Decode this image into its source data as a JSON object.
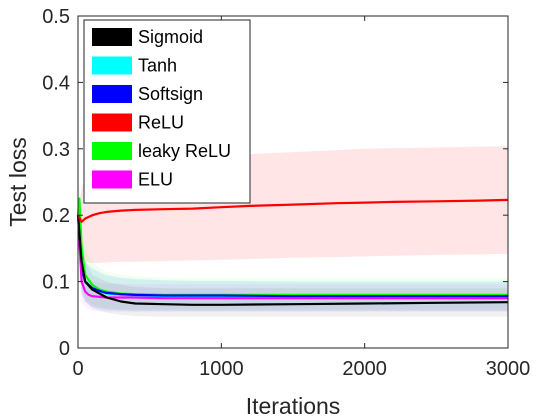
{
  "chart_data": {
    "type": "line",
    "title": "",
    "xlabel": "Iterations",
    "ylabel": "Test loss",
    "xlim": [
      0,
      3000
    ],
    "ylim": [
      0,
      0.5
    ],
    "xticks": [
      0,
      1000,
      2000,
      3000
    ],
    "yticks": [
      0,
      0.1,
      0.2,
      0.3,
      0.4,
      0.5
    ],
    "grid": false,
    "legend_position": "top-left",
    "series": [
      {
        "name": "Sigmoid",
        "color": "#000000",
        "x": [
          0,
          25,
          50,
          100,
          150,
          200,
          300,
          400,
          600,
          800,
          1000,
          1500,
          2000,
          2500,
          3000
        ],
        "y": [
          0.2,
          0.13,
          0.1,
          0.088,
          0.082,
          0.076,
          0.07,
          0.067,
          0.066,
          0.065,
          0.065,
          0.066,
          0.067,
          0.068,
          0.069
        ],
        "band_lower": [
          0.17,
          0.09,
          0.07,
          0.06,
          0.056,
          0.053,
          0.05,
          0.048,
          0.047,
          0.047,
          0.047,
          0.047,
          0.047,
          0.047,
          0.047
        ],
        "band_upper": [
          0.22,
          0.17,
          0.13,
          0.11,
          0.105,
          0.1,
          0.095,
          0.092,
          0.09,
          0.09,
          0.09,
          0.09,
          0.09,
          0.09,
          0.09
        ]
      },
      {
        "name": "Tanh",
        "color": "#00ffff",
        "x": [
          0,
          25,
          50,
          100,
          150,
          200,
          300,
          400,
          600,
          800,
          1000,
          1500,
          2000,
          2500,
          3000
        ],
        "y": [
          0.2,
          0.12,
          0.1,
          0.09,
          0.085,
          0.082,
          0.08,
          0.079,
          0.078,
          0.078,
          0.078,
          0.078,
          0.078,
          0.078,
          0.078
        ],
        "band_lower": [
          0.17,
          0.08,
          0.07,
          0.06,
          0.058,
          0.056,
          0.055,
          0.055,
          0.055,
          0.055,
          0.055,
          0.055,
          0.055,
          0.055,
          0.055
        ],
        "band_upper": [
          0.23,
          0.16,
          0.13,
          0.12,
          0.112,
          0.108,
          0.105,
          0.103,
          0.102,
          0.101,
          0.101,
          0.101,
          0.101,
          0.101,
          0.101
        ]
      },
      {
        "name": "Softsign",
        "color": "#0000ff",
        "x": [
          0,
          25,
          50,
          100,
          150,
          200,
          300,
          400,
          600,
          800,
          1000,
          1500,
          2000,
          2500,
          3000
        ],
        "y": [
          0.2,
          0.12,
          0.1,
          0.09,
          0.086,
          0.083,
          0.081,
          0.08,
          0.079,
          0.079,
          0.079,
          0.078,
          0.078,
          0.078,
          0.078
        ],
        "band_lower": [
          0.17,
          0.08,
          0.07,
          0.062,
          0.06,
          0.058,
          0.057,
          0.056,
          0.056,
          0.056,
          0.056,
          0.056,
          0.056,
          0.056,
          0.056
        ],
        "band_upper": [
          0.23,
          0.16,
          0.13,
          0.12,
          0.114,
          0.11,
          0.106,
          0.104,
          0.102,
          0.101,
          0.101,
          0.1,
          0.1,
          0.1,
          0.1
        ]
      },
      {
        "name": "ReLU",
        "color": "#ff0000",
        "x": [
          0,
          25,
          50,
          100,
          150,
          200,
          300,
          400,
          600,
          800,
          1000,
          1200,
          1500,
          1800,
          2000,
          2200,
          2500,
          2800,
          3000
        ],
        "y": [
          0.2,
          0.19,
          0.195,
          0.2,
          0.203,
          0.205,
          0.207,
          0.208,
          0.209,
          0.21,
          0.212,
          0.214,
          0.216,
          0.218,
          0.219,
          0.22,
          0.221,
          0.222,
          0.223
        ],
        "band_lower": [
          0.19,
          0.14,
          0.13,
          0.128,
          0.128,
          0.129,
          0.13,
          0.13,
          0.131,
          0.132,
          0.133,
          0.134,
          0.136,
          0.137,
          0.138,
          0.139,
          0.14,
          0.141,
          0.142
        ],
        "band_upper": [
          0.21,
          0.24,
          0.26,
          0.27,
          0.275,
          0.278,
          0.282,
          0.284,
          0.286,
          0.288,
          0.29,
          0.292,
          0.295,
          0.298,
          0.3,
          0.301,
          0.302,
          0.303,
          0.304
        ]
      },
      {
        "name": "leaky ReLU",
        "color": "#00ff00",
        "x": [
          0,
          10,
          25,
          50,
          100,
          150,
          200,
          300,
          400,
          600,
          800,
          1000,
          1500,
          2000,
          2500,
          3000
        ],
        "y": [
          0.2,
          0.225,
          0.15,
          0.11,
          0.095,
          0.088,
          0.085,
          0.082,
          0.081,
          0.08,
          0.08,
          0.08,
          0.08,
          0.08,
          0.08,
          0.08
        ],
        "band_lower": [
          0.17,
          0.19,
          0.1,
          0.075,
          0.065,
          0.062,
          0.06,
          0.058,
          0.058,
          0.058,
          0.058,
          0.058,
          0.058,
          0.058,
          0.058,
          0.058
        ],
        "band_upper": [
          0.23,
          0.25,
          0.2,
          0.15,
          0.13,
          0.12,
          0.115,
          0.11,
          0.108,
          0.106,
          0.105,
          0.105,
          0.105,
          0.105,
          0.105,
          0.105
        ]
      },
      {
        "name": "ELU",
        "color": "#ff00ff",
        "x": [
          0,
          25,
          50,
          75,
          100,
          150,
          200,
          300,
          400,
          600,
          800,
          1000,
          1500,
          2000,
          2500,
          3000
        ],
        "y": [
          0.2,
          0.1,
          0.085,
          0.08,
          0.078,
          0.077,
          0.076,
          0.076,
          0.076,
          0.075,
          0.075,
          0.075,
          0.075,
          0.075,
          0.075,
          0.075
        ],
        "band_lower": [
          0.17,
          0.07,
          0.062,
          0.058,
          0.056,
          0.055,
          0.055,
          0.055,
          0.055,
          0.055,
          0.055,
          0.055,
          0.055,
          0.055,
          0.055,
          0.055
        ],
        "band_upper": [
          0.23,
          0.13,
          0.11,
          0.102,
          0.1,
          0.098,
          0.097,
          0.097,
          0.096,
          0.096,
          0.096,
          0.096,
          0.096,
          0.096,
          0.096,
          0.096
        ]
      }
    ]
  }
}
